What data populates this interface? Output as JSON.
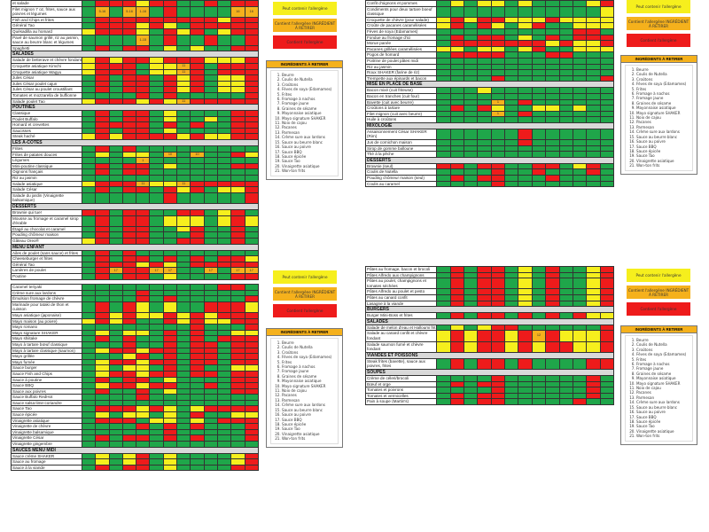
{
  "colors": {
    "G": "#1fa64a",
    "R": "#ee1b1b",
    "Y": "#f6ef1d",
    "O": "#f5b11c"
  },
  "legend": {
    "may_contain": "Peut contenir l'allergène",
    "contains_remove": "Contient l'allergène INGRÉDIENT À RETIRER",
    "contains": "Contient l'allergène"
  },
  "ingredients": {
    "title": "INGRÉDIENTS À RETIRER",
    "items": [
      "Beurre",
      "Coulis de Nutella",
      "Croûtons",
      "Fèves de soya (Edamames)",
      "Frites",
      "Fromage à nachos",
      "Fromage jaune",
      "Graines de sésame",
      "Mayonnaise asiatique",
      "Mayo signature SHAKER",
      "Noix de cajou",
      "Pacanes",
      "Parmesan",
      "Crème sure aux lardons",
      "Sauce au beurre blanc",
      "Sauce au poivre",
      "Sauce BBQ",
      "Sauce épicée",
      "Sauce Tao",
      "Vinaigrette asiatique",
      "Won-ton frits"
    ]
  },
  "tables": {
    "top_left": [
      {
        "label": "et salade",
        "cells": "G R R R Y R R G G R G R R"
      },
      {
        "label": "Filet mignon 7 oz, frites, sauce aux poivres et légumes",
        "cells": "G O5-16 G O5-16 O1-16 G R G G G G O16 O16"
      },
      {
        "label": "Fish and Chips et frites",
        "cells": "G R R R R R R R R R Y R R"
      },
      {
        "label": "Général Tao",
        "cells": "G R R R Y R Y G R R R R R"
      },
      {
        "label": "Quésadilla au homard",
        "cells": "Y R R R Y G R Y R G Y R R"
      },
      {
        "label": "Pavé de saumon grillé, riz au jasmin, sauce au beurre blanc et légumes",
        "cells": "G G G G O1-15 G R G G R G G R"
      },
      {
        "label": "Spaghetti",
        "cells": "G R G R R G Y G Y G G R R"
      },
      {
        "section": "SALADES"
      },
      {
        "label": "Salade de betterave et chèvre fondant",
        "cells": "Y R Y R R Y R R R Y Y Y R"
      },
      {
        "label": "Croquette asiatique Kimchi",
        "cells": "Y R R R G Y Y O11 R G R R R"
      },
      {
        "label": "Croquette asiatique Wagyu",
        "cells": "Y R R R G Y Y O11 R G R R R"
      },
      {
        "label": "Jules César",
        "cells": "G R G R R G R Y R G Y Y R"
      },
      {
        "label": "Jules César poulet cajun",
        "cells": "G R G R R G R Y R G Y Y R"
      },
      {
        "label": "Jules César au poulet croustillant",
        "cells": "G R G R R G R Y R G Y Y R"
      },
      {
        "label": "Tomates et mozzarella de buffionne",
        "cells": "G G G G R G R G G G G G R"
      },
      {
        "label": "Salade poulet Tao",
        "cells": "Y R R R Y R Y O11 R R R R R"
      },
      {
        "section": "POUTINES"
      },
      {
        "label": "Classique",
        "cells": "G R G R R G Y G G G G R R"
      },
      {
        "label": "Poulet Buffalo",
        "cells": "G R G R R G Y G G Y G R R"
      },
      {
        "label": "Homard et crevettes",
        "cells": "G R R R R G R G R G G R R"
      },
      {
        "label": "Saucisses",
        "cells": "G R G R R G Y G G G G R R"
      },
      {
        "label": "Steak haché",
        "cells": "Y R Y R R R R Y R Y Y R R"
      },
      {
        "section": "LES À-CÔTÉS"
      },
      {
        "label": "Frites",
        "cells": "G R G R G G G G G G G G G"
      },
      {
        "label": "Frites de patates douces",
        "cells": "G Y G Y Y G O10 G O10 G G R Y"
      },
      {
        "label": "Légumes",
        "cells": "G G G G O1 G G G G G G G G"
      },
      {
        "label": "Mini-poutine classique",
        "cells": "G R G R R G Y G G G G R R"
      },
      {
        "label": "Oignons français",
        "cells": "G R G R R G G G G G G G G"
      },
      {
        "label": "Riz au jasmin",
        "cells": "G G G G G G G G G G G G G"
      },
      {
        "label": "Salade asiatique",
        "cells": "Y R R R O11 Y Y O11 R R R R R"
      },
      {
        "label": "Salade César",
        "cells": "G R G R R G R Y R G Y Y R"
      },
      {
        "label": "Salade du jardin (Vinaigrette balsamique)",
        "cells": "G G G G G G R G G G G G R"
      },
      {
        "section": "DESSERTS"
      },
      {
        "label": "Brownie qui tue!",
        "cells": "R R G R R G G R R G Y R G"
      },
      {
        "label": "Mousse au fromage et caramel sirop d'érable",
        "cells": "G R G R R G Y Y Y G Y R Y"
      },
      {
        "label": "Étagé au chocolat et caramel",
        "cells": "G R G R R G G Y R G G R G"
      },
      {
        "label": "Pouding chômeur maison",
        "cells": "G R G R R G G G R G G R G"
      },
      {
        "label": "Gâteau Oreo®",
        "cells": "Y R G R R G G R R G G R G"
      },
      {
        "section": "MENU ENFANT"
      },
      {
        "label": "Ailes de poulet (sans sauce) et frites",
        "cells": "G R G R G G G G G G G G G"
      },
      {
        "label": "Cheeseburger et frites",
        "cells": "G R G R R G R G R G R R Y"
      },
      {
        "label": "Général Tao",
        "cells": "G R R R Y R Y G R R R R R"
      },
      {
        "label": "Lanières de poulet",
        "cells": "G R O17 R R O17 O17 G G O17 G O17 O17"
      },
      {
        "label": "Poutine",
        "cells": "G R G R R G Y G G G G R R"
      }
    ],
    "bottom_left": [
      {
        "label": "Caramel teriyaki",
        "cells": "G G G G G G G G G G R R G"
      },
      {
        "label": "Crème sure aux lardons",
        "cells": "G G G G R G G G G G G G G"
      },
      {
        "label": "Émulsion fromage de chèvre",
        "cells": "G G G G R G R G G G G G R"
      },
      {
        "label": "Marinade pour tataki de thon et cuisson",
        "cells": "G R G R Y G Y G G R R R Y"
      },
      {
        "label": "Mayo asiatique (japonaise)",
        "cells": "G R Y R Y Y R Y R Y R R R"
      },
      {
        "label": "Mayo maison (au poivre)",
        "cells": "Y R Y R G G R Y R Y Y R R"
      },
      {
        "label": "Mayo romano",
        "cells": "G G G G G G G G R G G G R"
      },
      {
        "label": "Mayo signature SHAKER",
        "cells": "G Y G Y Y G R G R G G Y Y"
      },
      {
        "label": "Mayo shiitake",
        "cells": "G R G R G G R G R G R R R"
      },
      {
        "label": "Mayo à tartare bœuf classique",
        "cells": "G G G R G G R G R R G R R"
      },
      {
        "label": "Mayo à tartare classique (saumon)",
        "cells": "G Y R R Y R R G R R G R R"
      },
      {
        "label": "Mayo grillée",
        "cells": "G G G Y R G R G R R G R R"
      },
      {
        "label": "Mayo fumée",
        "cells": "G Y R R Y R R G R R G R R"
      },
      {
        "label": "Sauce burger",
        "cells": "G Y G Y Y G R G R G G Y Y"
      },
      {
        "label": "Sauce Fish and Chips",
        "cells": "G Y R R Y R R G R R G R R"
      },
      {
        "label": "Sauce à poutine",
        "cells": "G R G R R G Y G G G G R R"
      },
      {
        "label": "Sauce BBQ",
        "cells": "G Y R R Y R R G G R G R R"
      },
      {
        "label": "Sauce aux poivres",
        "cells": "G R G G R G Y G G G G R R"
      },
      {
        "label": "Sauce Buffalo RedHot",
        "cells": "G G G G R G G G G G G G G"
      },
      {
        "label": "Sauce salsa-lime-coriandre",
        "cells": "G G G G G G G G G G G G G"
      },
      {
        "label": "Sauce Tao",
        "cells": "G R R R Y R Y G Y R R R R"
      },
      {
        "label": "Sauce épicée",
        "cells": "G Y G Y Y G Y G R G G Y Y"
      },
      {
        "label": "Vinaigrette asiatique",
        "cells": "G R R R G Y Y G Y G R R R"
      },
      {
        "label": "Vinaigrette de chèvre",
        "cells": "G G G G R G R G R G G G R"
      },
      {
        "label": "Vinaigrette balsamique",
        "cells": "G G G G G G R G G G G G R"
      },
      {
        "label": "Vinaigrette César",
        "cells": "G R G R R G R G R G G G R"
      },
      {
        "label": "Vinaigrette gingembre",
        "cells": "G G G G G G G G G G G G G"
      },
      {
        "section": "SAUCES MENU MIDI"
      },
      {
        "label": "Sauce crème SHAKER",
        "cells": "G Y G Y R G Y G G G G Y R"
      },
      {
        "label": "Sauce au fromage",
        "cells": "G Y G Y R G Y G G G G Y R"
      },
      {
        "label": "Sauce à la viande",
        "cells": "G R G R R G Y G G G G R R"
      }
    ],
    "top_right": [
      {
        "label": "Confit d'oignons et pommes",
        "cells": "G Y G Y Y G Y G G G G Y R"
      },
      {
        "label": "Condiments pour deux tartare boeuf classique",
        "cells": "G G G G G G G G G G G G Y"
      },
      {
        "label": "Croquette de chèvre (pour salade)",
        "cells": "Y R Y R R Y Y Y R Y Y Y Y"
      },
      {
        "label": "Croûte de pacanes caramélisées",
        "cells": "Y R G R Y G Y R G G Y Y Y"
      },
      {
        "label": "Fèves de soya (Edamames)",
        "cells": "G G G G G G G G G G R R G"
      },
      {
        "label": "Fondue au fromage d'ici",
        "cells": "G R G R R G Y G R G R R R"
      },
      {
        "label": "Morue panée",
        "cells": "G R R R R R R R Y R Y Y R"
      },
      {
        "label": "Pacanes grillées caramélisées",
        "cells": "Y Y G Y Y G Y R G G Y Y Y"
      },
      {
        "label": "Pogos de homard",
        "cells": "G R R R R G G G R R G G G"
      },
      {
        "label": "Poitrine de poulet pâtes midi",
        "cells": "G G G G G G G G G G G G G"
      },
      {
        "label": "Riz au jasmin",
        "cells": "G G G G G G G G G G G G G"
      },
      {
        "label": "Roux SHAKER (farine de riz)",
        "cells": "G G G G G G G G G G G G G"
      },
      {
        "label": "Trempette aux épinards et bacon",
        "cells": "G G G G R G G G G G G G R"
      },
      {
        "section": "MISE EN PLACE DE BASE"
      },
      {
        "label": "Bacon mixé (cuit friteuse)",
        "cells": "G G G Y G G G G G G G G G"
      },
      {
        "label": "Bacon en tranches (cuit four)",
        "cells": "G G G G G G G G G G G G G"
      },
      {
        "label": "Bavette (cuit avec beurre)",
        "cells": "G G G G O1 G R G G G G G G"
      },
      {
        "label": "Croûtons à tartare",
        "cells": "G R G R Y G G Y Y G Y G G"
      },
      {
        "label": "Filet mignon (cuit avec beurre)",
        "cells": "G G G G O1 G R G G G G G G"
      },
      {
        "label": "Huile à croûtons",
        "cells": "G G G G G G G G G G G G G"
      },
      {
        "section": "MIXOLOGIE"
      },
      {
        "label": "Assaisonnement César SHAKER (Rim)",
        "cells": "G G G G G G R G G G G G G"
      },
      {
        "label": "Jus de cornichon maison",
        "cells": "G G G G G G R G G G G G G"
      },
      {
        "label": "Sirop de gomme balloune",
        "cells": "G G G G G G G G G G G G G"
      },
      {
        "label": "Thé à la pêche",
        "cells": "G G G G G G G G G G G G G"
      },
      {
        "section": "DESSERTS"
      },
      {
        "label": "Brownie (seul)",
        "cells": "R R G R R G G R R G Y R G"
      },
      {
        "label": "Coulis de Nutella",
        "cells": "G G G G R G G R G G G R G"
      },
      {
        "label": "Pouding chômeur maison (seul)",
        "cells": "G R G R R G G G R G G G G"
      },
      {
        "label": "Coulis au caramel",
        "cells": "G G G G R G G G G G G G G"
      }
    ],
    "bottom_right": [
      {
        "label": "Pâtes au fromage, bacon et brocoli",
        "cells": "G R G R R G Y G R G G Y R"
      },
      {
        "label": "Pâtes Alfredo aux champignons",
        "cells": "G R G R R G Y G R G G Y R"
      },
      {
        "label": "Pâtes au poulet, champignons et tomates séchées",
        "cells": "G R G R R G Y G R G G Y R"
      },
      {
        "label": "Pâtes Alfredo au poulet et pesto",
        "cells": "G R G R R G Y G R G G Y R"
      },
      {
        "label": "Pâtes au canard confit",
        "cells": "G R G R R G Y G R G G Y R"
      },
      {
        "label": "Lasagne à la viande",
        "cells": "G R G R R G Y G R G G Y R"
      },
      {
        "section": "BURGERS"
      },
      {
        "label": "Burger Mini-Boss et frites",
        "cells": "G R G R R G R G R G R Y Y"
      },
      {
        "section": "SALADES"
      },
      {
        "label": "Salade de melon d'eau et Halloumi frit",
        "cells": "G Y G Y R R G G G G G G R"
      },
      {
        "label": "Salade au canard confit et chèvre fondant",
        "cells": "Y R Y R R Y R O12 R Y Y Y R"
      },
      {
        "label": "Salade saumon fumé et chèvre fondant",
        "cells": "Y R Y R R Y R Y R R Y Y R"
      },
      {
        "section": "VIANDES ET POISSONS"
      },
      {
        "label": "Steak frites (bavette), sauce aux poivres, frites",
        "cells": "G R G R R G R G G G G R R"
      },
      {
        "section": "SOUPES"
      },
      {
        "label": "Crème de céleri/brocoli",
        "cells": "G G G G R G G G G G G R G"
      },
      {
        "label": "Bœuf et orge",
        "cells": "G R G R R G G G G G G R G"
      },
      {
        "label": "Tomates et poivrons",
        "cells": "G G G G R G G G G G G R G"
      },
      {
        "label": "Tomates et vermicelles",
        "cells": "G R G R R G G G G G G R G"
      },
      {
        "label": "Pain à soupe (Martin's)",
        "cells": "G R G R R G G G G G R G G"
      }
    ]
  }
}
